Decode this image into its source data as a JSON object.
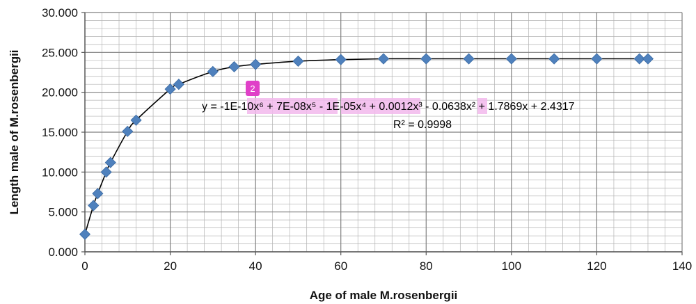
{
  "chart_data": {
    "type": "scatter",
    "xlabel": "Age of male M.rosenbergii",
    "ylabel": "Length male of M.rosenbergii",
    "xlim": [
      0,
      140
    ],
    "ylim": [
      0,
      30
    ],
    "x_ticks": [
      "0",
      "20",
      "40",
      "60",
      "80",
      "100",
      "120",
      "140"
    ],
    "y_ticks": [
      "0.000",
      "5.000",
      "10.000",
      "15.000",
      "20.000",
      "25.000",
      "30.000"
    ],
    "grid": true,
    "marker_color": "#4F81BD",
    "trendline": {
      "type": "polynomial",
      "order": 6,
      "color": "#000000",
      "equation": "y = -1E-10x⁶ + 7E-08x⁵ - 1E-05x⁴ + 0.0012x³ - 0.0638x² + 1.7869x + 2.4317",
      "r_squared": "R² = 0.9998"
    },
    "annotation": {
      "badge": "2",
      "badge_color": "#E040C8",
      "highlight_color": "#F2B8EC"
    },
    "points": [
      {
        "x": 0,
        "y": 2.2
      },
      {
        "x": 2,
        "y": 5.8
      },
      {
        "x": 3,
        "y": 7.3
      },
      {
        "x": 5,
        "y": 10.0
      },
      {
        "x": 6,
        "y": 11.2
      },
      {
        "x": 10,
        "y": 15.1
      },
      {
        "x": 12,
        "y": 16.5
      },
      {
        "x": 20,
        "y": 20.4
      },
      {
        "x": 22,
        "y": 21.0
      },
      {
        "x": 30,
        "y": 22.6
      },
      {
        "x": 35,
        "y": 23.2
      },
      {
        "x": 40,
        "y": 23.5
      },
      {
        "x": 50,
        "y": 23.9
      },
      {
        "x": 60,
        "y": 24.1
      },
      {
        "x": 70,
        "y": 24.2
      },
      {
        "x": 80,
        "y": 24.2
      },
      {
        "x": 90,
        "y": 24.2
      },
      {
        "x": 100,
        "y": 24.2
      },
      {
        "x": 110,
        "y": 24.2
      },
      {
        "x": 120,
        "y": 24.2
      },
      {
        "x": 130,
        "y": 24.2
      },
      {
        "x": 132,
        "y": 24.2
      }
    ]
  }
}
